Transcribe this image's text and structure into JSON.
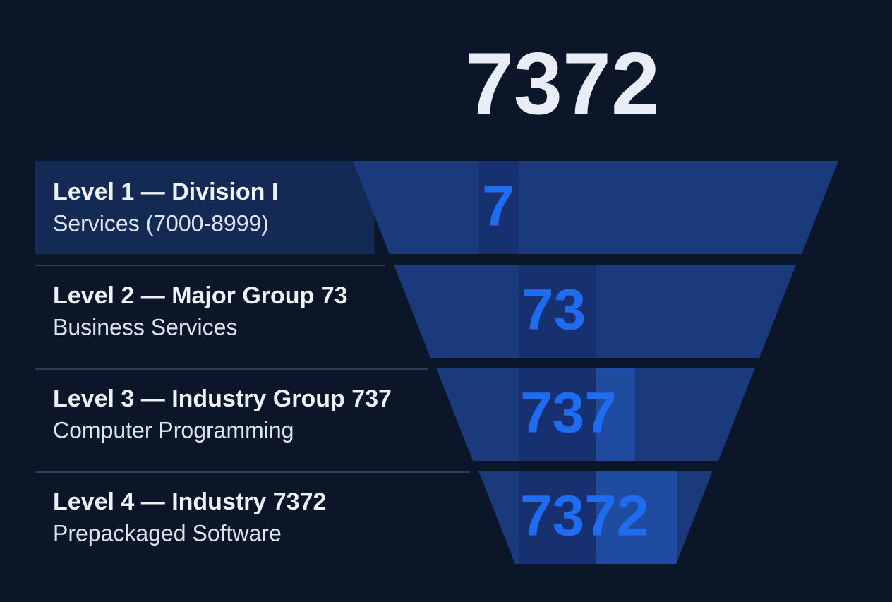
{
  "header": {
    "code": "7372"
  },
  "levels": [
    {
      "title": "Level 1 — Division I",
      "subtitle": "Services (7000-8999)",
      "code": "7"
    },
    {
      "title": "Level 2 — Major Group 73",
      "subtitle": "Business Services",
      "code": "73"
    },
    {
      "title": "Level 3 — Industry Group 737",
      "subtitle": "Computer Programming",
      "code": "737"
    },
    {
      "title": "Level 4 — Industry 7372",
      "subtitle": "Prepackaged Software",
      "code": "7372"
    }
  ]
}
